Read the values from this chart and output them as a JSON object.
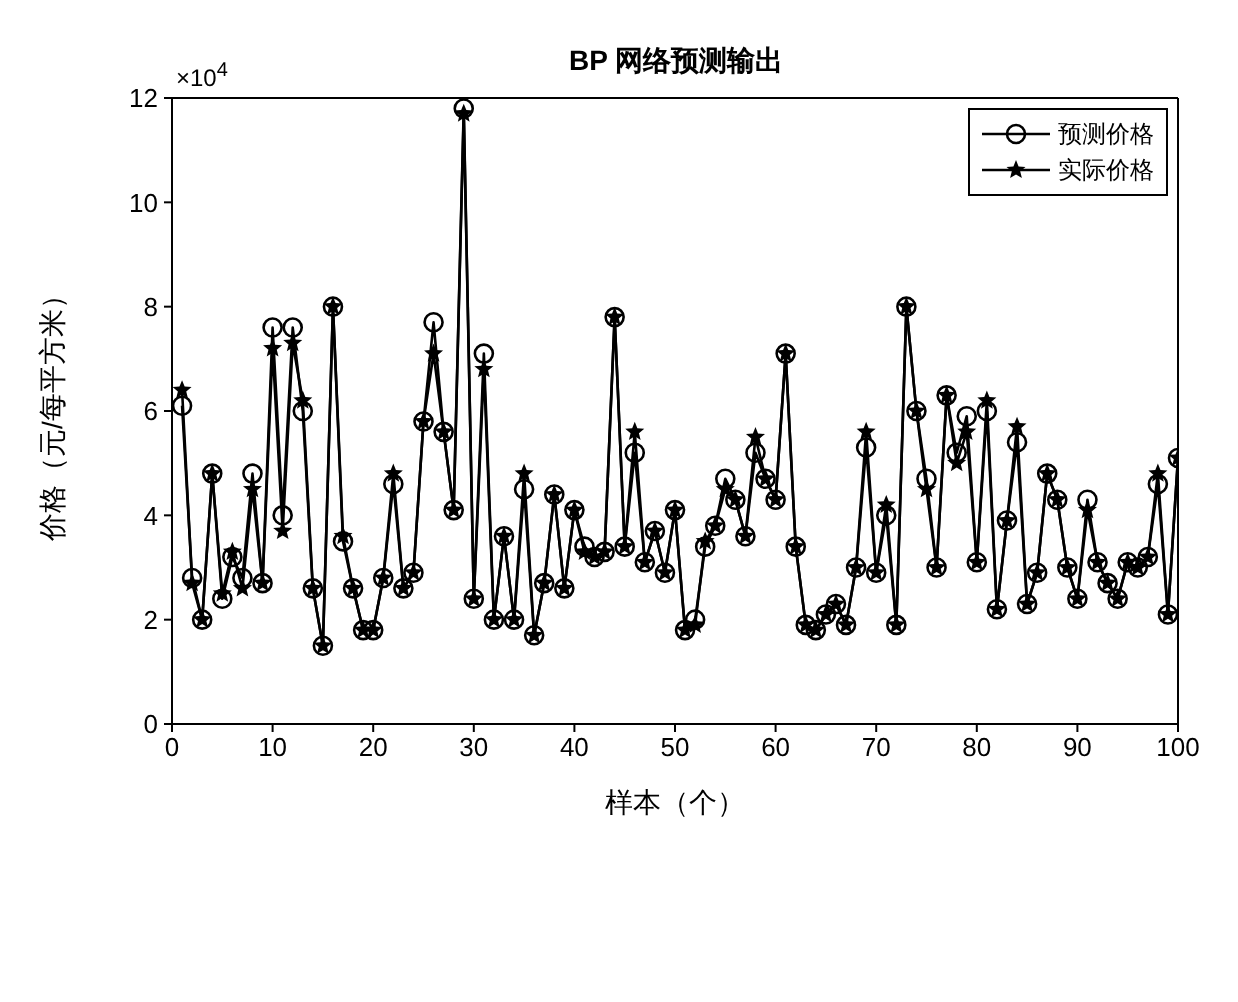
{
  "chart_data": {
    "type": "line",
    "title": "BP 网络预测输出",
    "xlabel": "样本（个）",
    "ylabel": "价格（元/每平方米）",
    "annotations": [
      "×10$^{4}$"
    ],
    "x": [
      1,
      2,
      3,
      4,
      5,
      6,
      7,
      8,
      9,
      10,
      11,
      12,
      13,
      14,
      15,
      16,
      17,
      18,
      19,
      20,
      21,
      22,
      23,
      24,
      25,
      26,
      27,
      28,
      29,
      30,
      31,
      32,
      33,
      34,
      35,
      36,
      37,
      38,
      39,
      40,
      41,
      42,
      43,
      44,
      45,
      46,
      47,
      48,
      49,
      50,
      51,
      52,
      53,
      54,
      55,
      56,
      57,
      58,
      59,
      60,
      61,
      62,
      63,
      64,
      65,
      66,
      67,
      68,
      69,
      70,
      71,
      72,
      73,
      74,
      75,
      76,
      77,
      78,
      79,
      80,
      81,
      82,
      83,
      84,
      85,
      86,
      87,
      88,
      89,
      90,
      91,
      92,
      93,
      94,
      95,
      96,
      97,
      98,
      99,
      100
    ],
    "series": [
      {
        "name": "预测价格",
        "color": "#000000",
        "marker": "circle",
        "values": [
          6.1,
          2.8,
          2.0,
          4.8,
          2.4,
          3.2,
          2.8,
          4.8,
          2.7,
          7.6,
          4.0,
          7.6,
          6.0,
          2.6,
          1.5,
          8.0,
          3.5,
          2.6,
          1.8,
          1.8,
          2.8,
          4.6,
          2.6,
          2.9,
          5.8,
          7.7,
          5.6,
          4.1,
          11.8,
          2.4,
          7.1,
          2.0,
          3.6,
          2.0,
          4.5,
          1.7,
          2.7,
          4.4,
          2.6,
          4.1,
          3.4,
          3.2,
          3.3,
          7.8,
          3.4,
          5.2,
          3.1,
          3.7,
          2.9,
          4.1,
          1.8,
          2.0,
          3.4,
          3.8,
          4.7,
          4.3,
          3.6,
          5.2,
          4.7,
          4.3,
          7.1,
          3.4,
          1.9,
          1.8,
          2.1,
          2.3,
          1.9,
          3.0,
          5.3,
          2.9,
          4.0,
          1.9,
          8.0,
          6.0,
          4.7,
          3.0,
          6.3,
          5.2,
          5.9,
          3.1,
          6.0,
          2.2,
          3.9,
          5.4,
          2.3,
          2.9,
          4.8,
          4.3,
          3.0,
          2.4,
          4.3,
          3.1,
          2.7,
          2.4,
          3.1,
          3.0,
          3.2,
          4.6,
          2.1,
          5.1
        ]
      },
      {
        "name": "实际价格",
        "color": "#000000",
        "marker": "star",
        "values": [
          6.4,
          2.7,
          2.0,
          4.8,
          2.5,
          3.3,
          2.6,
          4.5,
          2.7,
          7.2,
          3.7,
          7.3,
          6.2,
          2.6,
          1.5,
          8.0,
          3.6,
          2.6,
          1.8,
          1.8,
          2.8,
          4.8,
          2.6,
          2.9,
          5.8,
          7.1,
          5.6,
          4.1,
          11.7,
          2.4,
          6.8,
          2.0,
          3.6,
          2.0,
          4.8,
          1.7,
          2.7,
          4.4,
          2.6,
          4.1,
          3.3,
          3.2,
          3.3,
          7.8,
          3.4,
          5.6,
          3.1,
          3.7,
          2.9,
          4.1,
          1.8,
          1.9,
          3.5,
          3.8,
          4.5,
          4.3,
          3.6,
          5.5,
          4.7,
          4.3,
          7.1,
          3.4,
          1.9,
          1.8,
          2.1,
          2.3,
          1.9,
          3.0,
          5.6,
          2.9,
          4.2,
          1.9,
          8.0,
          6.0,
          4.5,
          3.0,
          6.3,
          5.0,
          5.6,
          3.1,
          6.2,
          2.2,
          3.9,
          5.7,
          2.3,
          2.9,
          4.8,
          4.3,
          3.0,
          2.4,
          4.1,
          3.1,
          2.7,
          2.4,
          3.1,
          3.0,
          3.2,
          4.8,
          2.1,
          5.1
        ]
      }
    ],
    "xlim": [
      0,
      100
    ],
    "xticks": [
      0,
      10,
      20,
      30,
      40,
      50,
      60,
      70,
      80,
      90,
      100
    ],
    "ylim": [
      0,
      12
    ],
    "yticks": [
      0,
      2,
      4,
      6,
      8,
      10,
      12
    ],
    "grid": false,
    "legend": "top right",
    "line_style": "solid"
  }
}
